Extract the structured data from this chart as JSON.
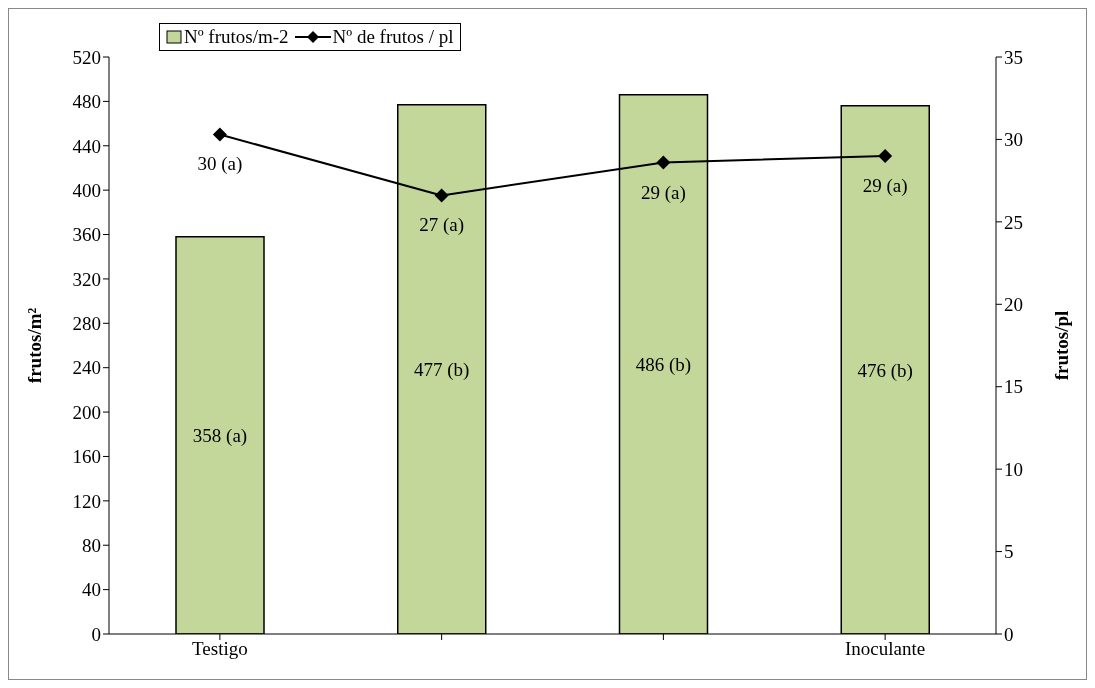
{
  "chart_data": {
    "type": "bar",
    "categories": [
      "Testigo",
      null,
      null,
      "Inoculante"
    ],
    "ylabel": "frutos/m²",
    "y2label": "frutos/pl",
    "ylim": [
      0,
      520
    ],
    "yticks": [
      0,
      40,
      80,
      120,
      160,
      200,
      240,
      280,
      320,
      360,
      400,
      440,
      480,
      520
    ],
    "y2lim": [
      0,
      35
    ],
    "y2ticks": [
      0,
      5,
      10,
      15,
      20,
      25,
      30,
      35
    ],
    "series": [
      {
        "name": "Nº frutos/m-2",
        "color": "#c4d79b",
        "values": [
          358,
          477,
          486,
          476
        ],
        "value_labels": [
          "358 (a)",
          "477 (b)",
          "486 (b)",
          "476 (b)"
        ]
      },
      {
        "name": "Nº de frutos / pl",
        "type": "line",
        "axis": "y2",
        "color": "#000000",
        "values": [
          30.3,
          26.6,
          28.6,
          29.0
        ],
        "value_labels": [
          "30 (a)",
          "27 (a)",
          "29 (a)",
          "29 (a)"
        ],
        "marker": "diamond"
      }
    ],
    "legend": "top left"
  }
}
